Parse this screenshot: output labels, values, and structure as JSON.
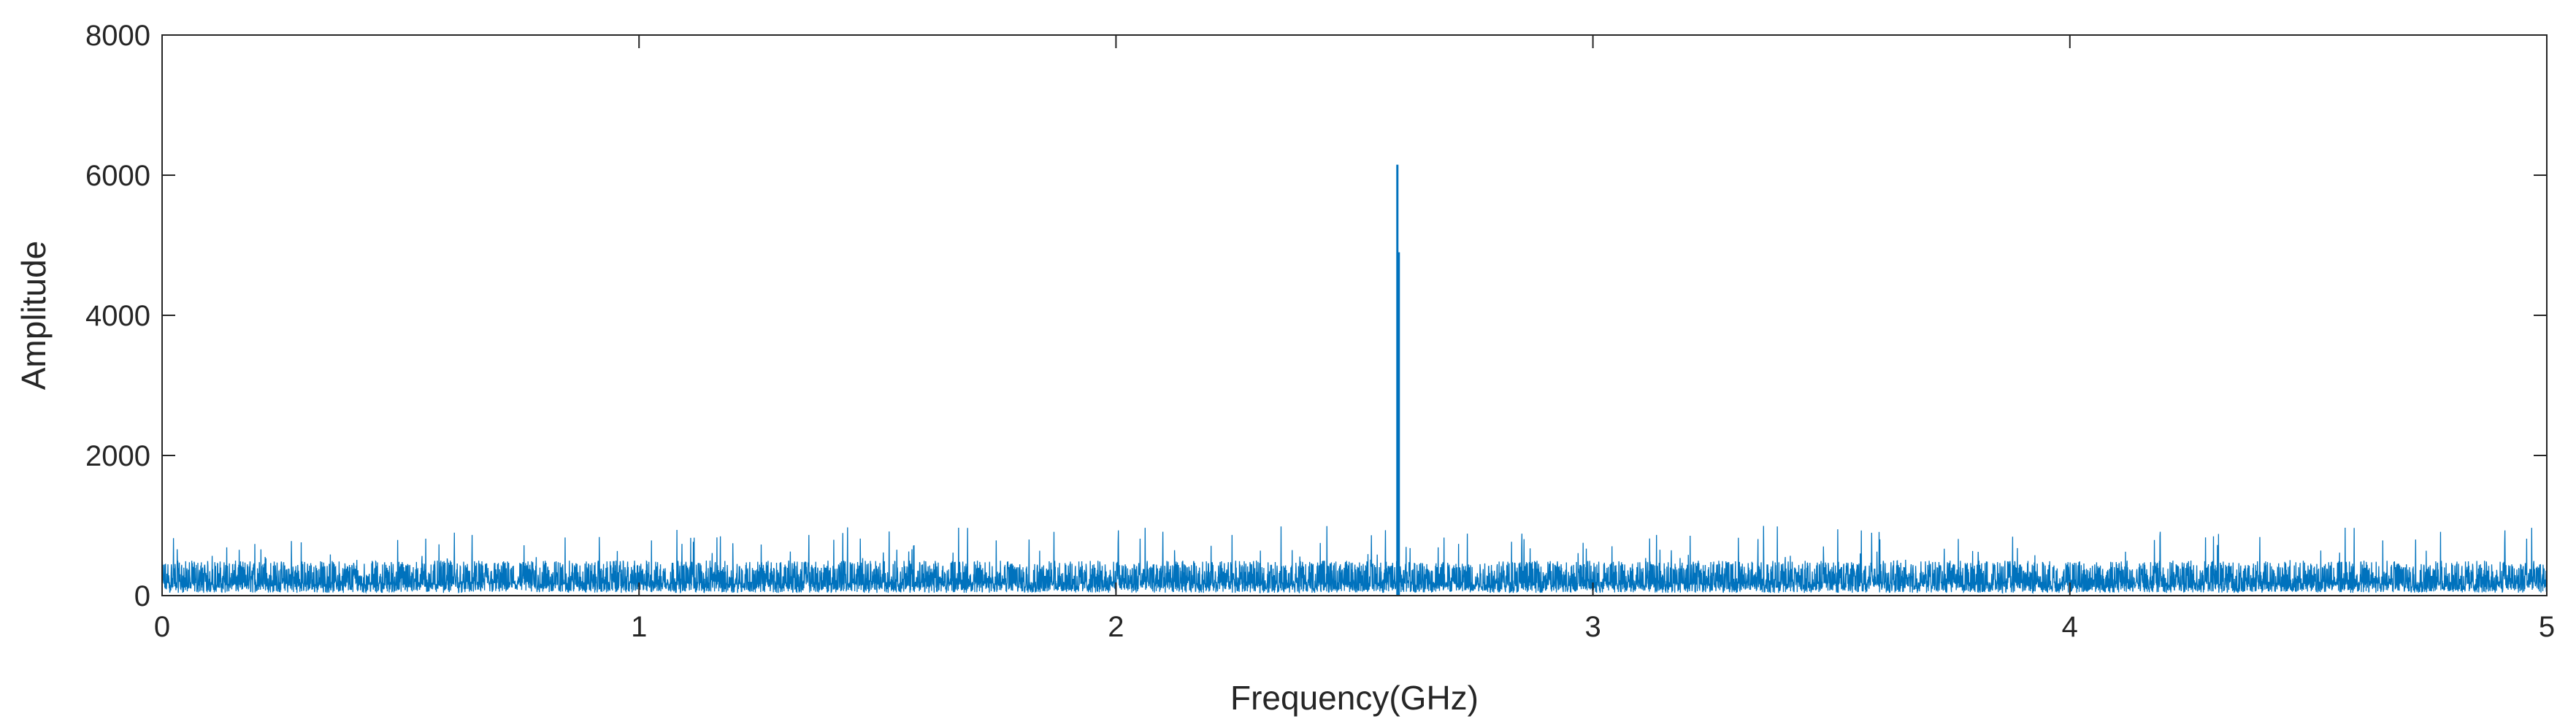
{
  "chart_data": {
    "type": "line",
    "title": "",
    "xlabel": "Frequency(GHz)",
    "ylabel": "Amplitude",
    "xlim": [
      0,
      5
    ],
    "ylim": [
      0,
      8000
    ],
    "xticks": [
      0,
      1,
      2,
      3,
      4,
      5
    ],
    "xtick_labels": [
      "0",
      "1",
      "2",
      "3",
      "4",
      "5"
    ],
    "yticks": [
      0,
      2000,
      4000,
      6000,
      8000
    ],
    "ytick_labels": [
      "0",
      "2000",
      "4000",
      "6000",
      "8000"
    ],
    "grid": false,
    "legend": "none",
    "series": [
      {
        "color": "#0072BD",
        "noise_floor_range": [
          0,
          500
        ],
        "occasional_noise_peaks_max": 1000,
        "peaks": [
          {
            "x": 2.59,
            "y": 6150
          },
          {
            "x": 2.593,
            "y": 4900
          }
        ]
      }
    ]
  }
}
